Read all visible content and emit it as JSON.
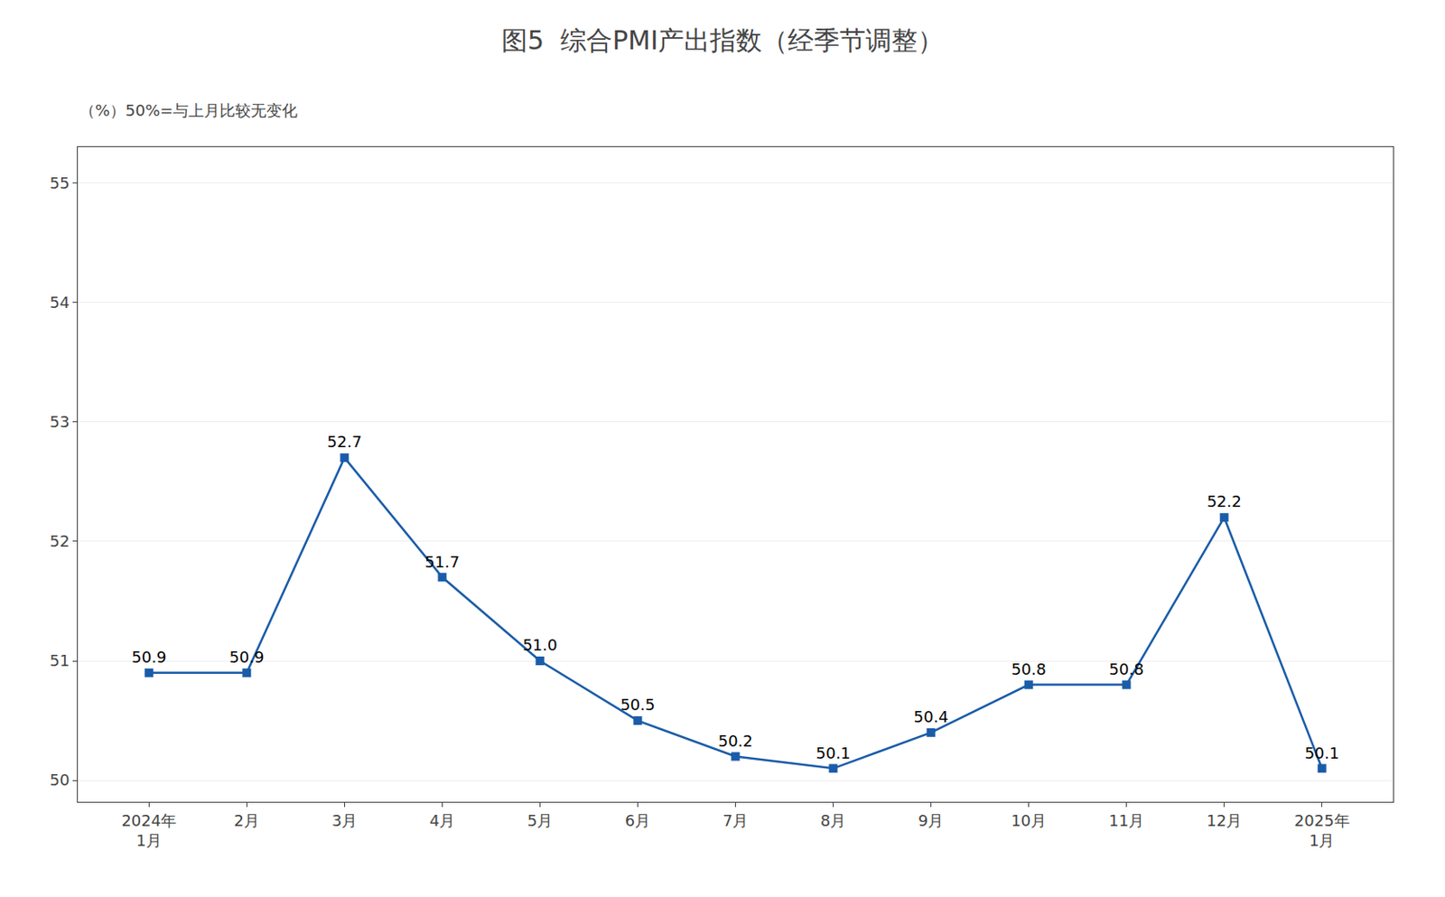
{
  "chart_data": {
    "type": "line",
    "title": "图5  综合PMI产出指数（经季节调整）",
    "subtitle": "（%）50%=与上月比较无变化",
    "categories": [
      "2024年\n1月",
      "2月",
      "3月",
      "4月",
      "5月",
      "6月",
      "7月",
      "8月",
      "9月",
      "10月",
      "11月",
      "12月",
      "2025年\n1月"
    ],
    "values": [
      50.9,
      50.9,
      52.7,
      51.7,
      51.0,
      50.5,
      50.2,
      50.1,
      50.4,
      50.8,
      50.8,
      52.2,
      50.1
    ],
    "value_labels": [
      "50.9",
      "50.9",
      "52.7",
      "51.7",
      "51.0",
      "50.5",
      "50.2",
      "50.1",
      "50.4",
      "50.8",
      "50.8",
      "52.2",
      "50.1"
    ],
    "data_labels": true,
    "color": "#1A5CA8",
    "marker": "square",
    "ylim": [
      49.82,
      55.3
    ],
    "yticks": [
      50,
      51,
      52,
      53,
      54,
      55
    ],
    "grid": true
  }
}
